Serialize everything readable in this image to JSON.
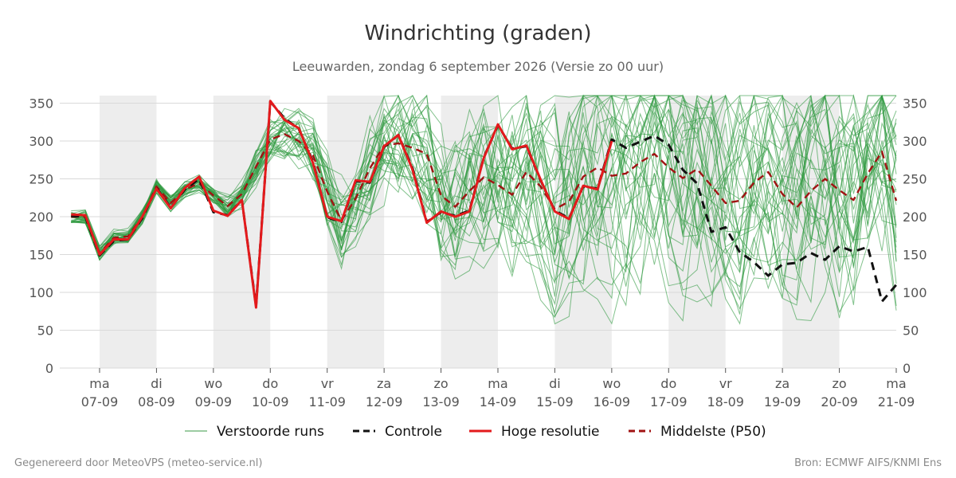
{
  "title": "Windrichting (graden)",
  "subtitle": "Leeuwarden, zondag  6 september 2026 (Versie zo 00 uur)",
  "footer_left": "Gegenereerd door MeteoVPS (meteo-service.nl)",
  "footer_right": "Bron: ECMWF AIFS/KNMI Ens",
  "legend": [
    {
      "label": "Verstoorde runs",
      "color": "#3a9a45",
      "style": "thin"
    },
    {
      "label": "Controle",
      "color": "#111111",
      "style": "dashed"
    },
    {
      "label": "Hoge resolutie",
      "color": "#e31a1c",
      "style": "solid"
    },
    {
      "label": "Middelste (P50)",
      "color": "#a11313",
      "style": "dashed"
    }
  ],
  "chart_data": {
    "type": "line",
    "title": "Windrichting (graden)",
    "ylim": [
      0,
      360
    ],
    "yticks": [
      0,
      50,
      100,
      150,
      200,
      250,
      300,
      350
    ],
    "xlim": [
      6.3,
      21.0
    ],
    "day_ticks": [
      {
        "x": 7,
        "day": "ma",
        "date": "07-09"
      },
      {
        "x": 8,
        "day": "di",
        "date": "08-09"
      },
      {
        "x": 9,
        "day": "wo",
        "date": "09-09"
      },
      {
        "x": 10,
        "day": "do",
        "date": "10-09"
      },
      {
        "x": 11,
        "day": "vr",
        "date": "11-09"
      },
      {
        "x": 12,
        "day": "za",
        "date": "12-09"
      },
      {
        "x": 13,
        "day": "zo",
        "date": "13-09"
      },
      {
        "x": 14,
        "day": "ma",
        "date": "14-09"
      },
      {
        "x": 15,
        "day": "di",
        "date": "15-09"
      },
      {
        "x": 16,
        "day": "wo",
        "date": "16-09"
      },
      {
        "x": 17,
        "day": "do",
        "date": "17-09"
      },
      {
        "x": 18,
        "day": "vr",
        "date": "18-09"
      },
      {
        "x": 19,
        "day": "za",
        "date": "19-09"
      },
      {
        "x": 20,
        "day": "zo",
        "date": "20-09"
      },
      {
        "x": 21,
        "day": "ma",
        "date": "21-09"
      }
    ],
    "night_bands": [
      [
        7,
        8
      ],
      [
        9,
        10
      ],
      [
        11,
        12
      ],
      [
        13,
        14
      ],
      [
        15,
        16
      ],
      [
        17,
        18
      ],
      [
        19,
        20
      ]
    ],
    "grid": true,
    "legend_position": "bottom",
    "series": [
      {
        "name": "Hoge resolutie",
        "color": "#e31a1c",
        "x": [
          6.5,
          6.75,
          7.0,
          7.25,
          7.5,
          7.75,
          8.0,
          8.25,
          8.5,
          8.75,
          9.0,
          9.25,
          9.5,
          9.75,
          10.0,
          10.25,
          10.5,
          10.75,
          11.0,
          11.25,
          11.5,
          11.75,
          12.0,
          12.25,
          12.5,
          12.75,
          13.0,
          13.25,
          13.5,
          13.75,
          14.0,
          14.25,
          14.5,
          14.75,
          15.0,
          15.25,
          15.5,
          15.75,
          16.0
        ],
        "y": [
          203,
          202,
          150,
          170,
          170,
          200,
          237,
          211,
          238,
          253,
          208,
          201,
          222,
          80,
          353,
          328,
          317,
          271,
          200,
          194,
          248,
          246,
          293,
          308,
          262,
          192,
          207,
          200,
          207,
          277,
          322,
          289,
          294,
          249,
          207,
          197,
          241,
          236,
          300
        ]
      },
      {
        "name": "Controle",
        "color": "#111111",
        "x": [
          6.5,
          6.75,
          7.0,
          7.25,
          7.5,
          7.75,
          8.0,
          8.25,
          8.5,
          8.75,
          9.0,
          9.25,
          9.5,
          9.75,
          10.0,
          10.25,
          10.5,
          10.75,
          11.0,
          11.25,
          11.5,
          11.75,
          12.0,
          12.25,
          12.5,
          12.75,
          13.0,
          13.25,
          13.5,
          13.75,
          14.0,
          14.25,
          14.5,
          14.75,
          15.0,
          15.25,
          15.5,
          15.75,
          16.0,
          16.25,
          16.5,
          16.75,
          17.0,
          17.25,
          17.5,
          17.75,
          18.0,
          18.25,
          18.5,
          18.75,
          19.0,
          19.25,
          19.5,
          19.75,
          20.0,
          20.25,
          20.5,
          20.75,
          21.0
        ],
        "y": [
          201,
          200,
          149,
          168,
          170,
          198,
          238,
          212,
          236,
          250,
          206,
          202,
          222,
          82,
          352,
          330,
          316,
          273,
          199,
          193,
          247,
          245,
          292,
          308,
          264,
          193,
          206,
          201,
          208,
          278,
          321,
          290,
          293,
          248,
          208,
          198,
          240,
          237,
          302,
          291,
          299,
          307,
          295,
          262,
          244,
          180,
          186,
          153,
          140,
          122,
          137,
          139,
          152,
          143,
          161,
          154,
          160,
          88,
          110
        ]
      },
      {
        "name": "Middelste (P50)",
        "color": "#a11313",
        "x": [
          6.5,
          6.75,
          7.0,
          7.25,
          7.5,
          7.75,
          8.0,
          8.25,
          8.5,
          8.75,
          9.0,
          9.25,
          9.5,
          9.75,
          10.0,
          10.25,
          10.5,
          10.75,
          11.0,
          11.25,
          11.5,
          11.75,
          12.0,
          12.25,
          12.5,
          12.75,
          13.0,
          13.25,
          13.5,
          13.75,
          14.0,
          14.25,
          14.5,
          14.75,
          15.0,
          15.25,
          15.5,
          15.75,
          16.0,
          16.25,
          16.5,
          16.75,
          17.0,
          17.25,
          17.5,
          17.75,
          18.0,
          18.25,
          18.5,
          18.75,
          19.0,
          19.25,
          19.5,
          19.75,
          20.0,
          20.25,
          20.5,
          20.75,
          21.0
        ],
        "y": [
          200,
          200,
          152,
          172,
          174,
          200,
          240,
          218,
          236,
          244,
          228,
          214,
          230,
          266,
          302,
          309,
          300,
          281,
          233,
          195,
          224,
          264,
          294,
          297,
          291,
          283,
          228,
          213,
          234,
          252,
          242,
          229,
          259,
          240,
          210,
          220,
          253,
          265,
          254,
          257,
          272,
          283,
          265,
          251,
          263,
          241,
          218,
          221,
          245,
          259,
          230,
          212,
          234,
          250,
          235,
          222,
          257,
          286,
          221
        ]
      }
    ]
  }
}
